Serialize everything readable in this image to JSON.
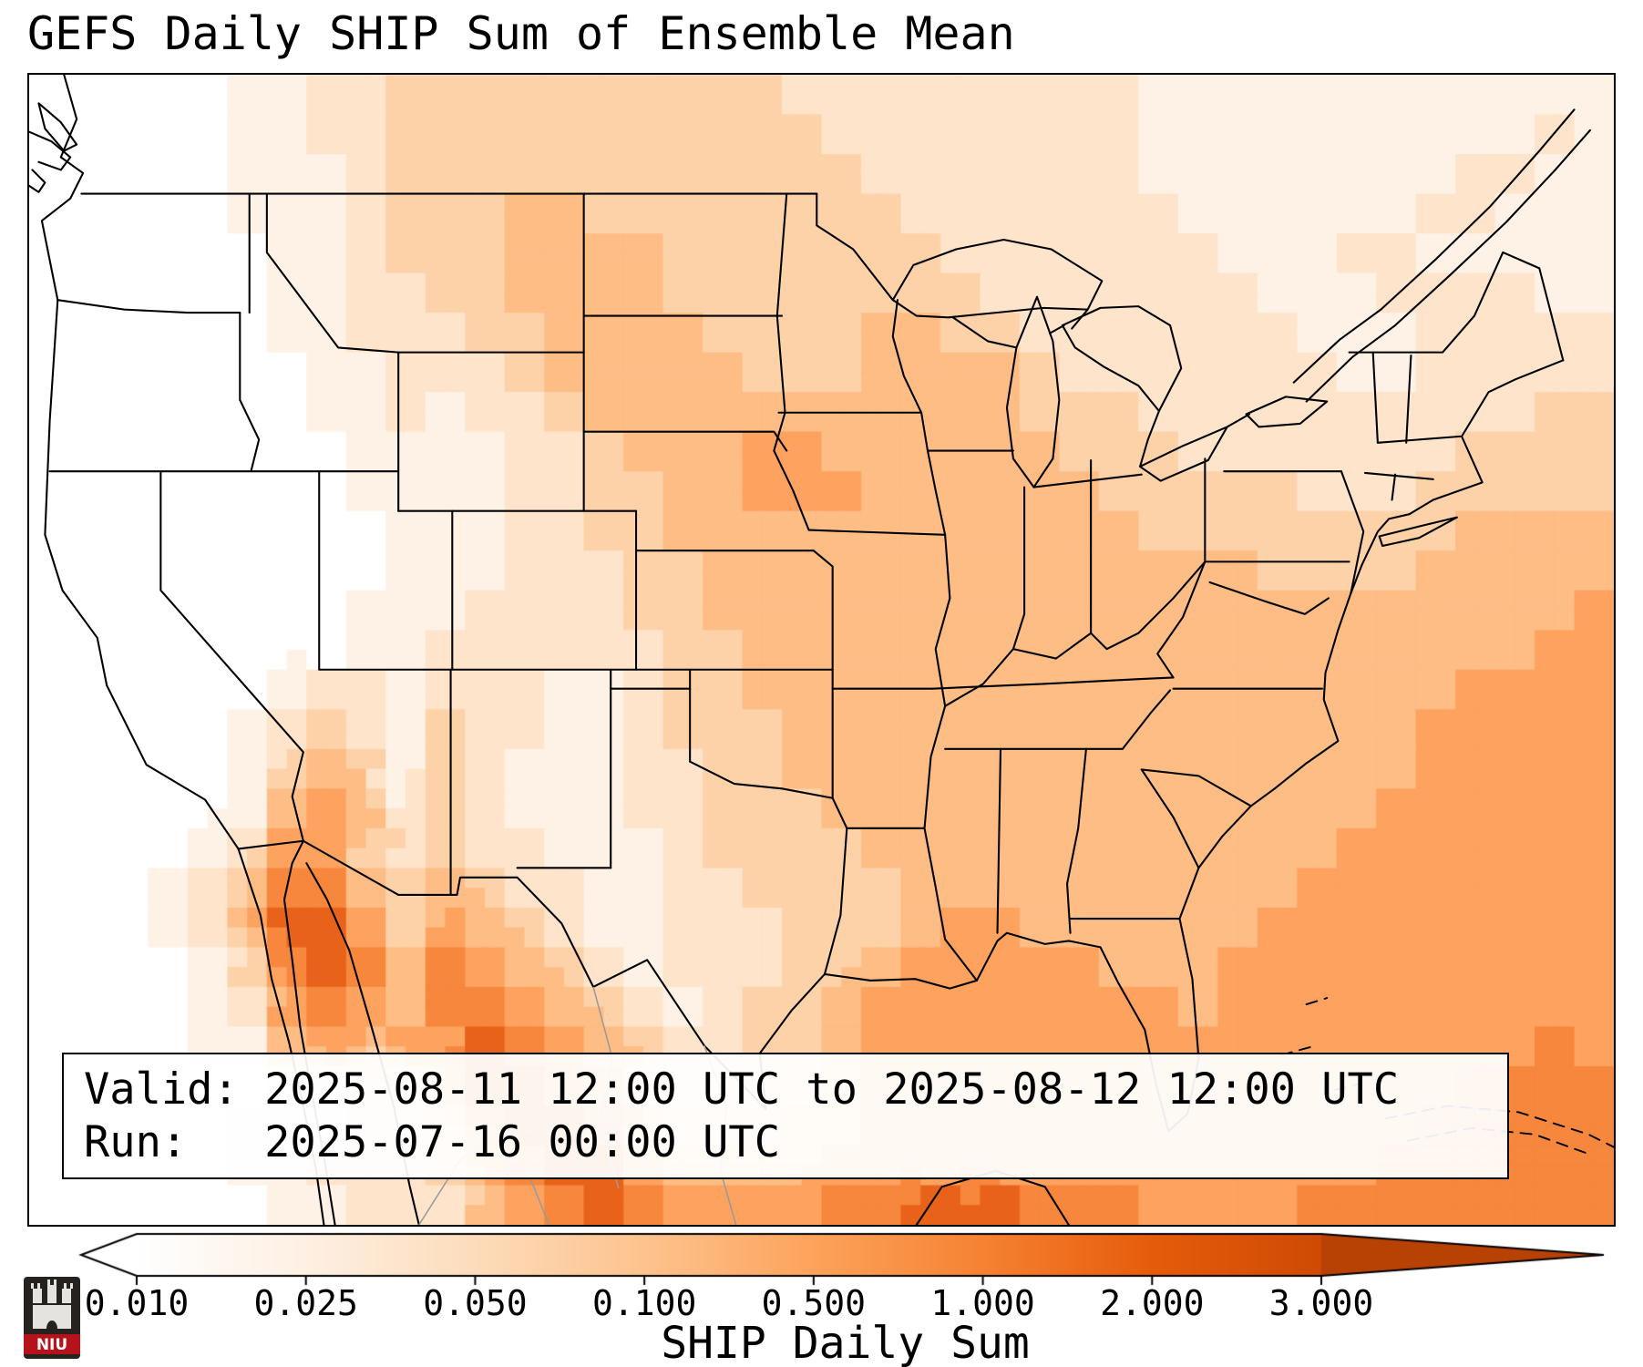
{
  "title": "GEFS Daily SHIP Sum of Ensemble Mean",
  "info_box": {
    "valid": "Valid: 2025-08-11 12:00 UTC to 2025-08-12 12:00 UTC",
    "run": "Run:   2025-07-16 00:00 UTC"
  },
  "colorbar": {
    "label": "SHIP Daily Sum",
    "ticks": [
      "0.010",
      "0.025",
      "0.050",
      "0.100",
      "0.500",
      "1.000",
      "2.000",
      "3.000"
    ],
    "gradient": [
      "#ffffff",
      "#fef0e3",
      "#fddcbb",
      "#fdc38e",
      "#fda35c",
      "#f68232",
      "#e65c0c",
      "#cf4a04"
    ],
    "under_color": "#ffffff",
    "over_color": "#b84203"
  },
  "logo": {
    "text": "NIU",
    "red": "#b5121b",
    "dark": "#26231f"
  },
  "map": {
    "colormap": [
      "#ffffff",
      "#fef2e6",
      "#fde4cb",
      "#fdd2a9",
      "#fdbd85",
      "#fda35f",
      "#f6873d",
      "#e8621a",
      "#cf4a04"
    ],
    "grid": [
      "0000011223333333333222222222111111111111",
      "0000011223333333333322222222111111111121",
      "0000011123333333333332222222111111112211",
      "0000011123334433333333222222211111122111",
      "0000001123334444333333322222221112211111",
      "0000001122334444333333332222222111222211",
      "0000001122233444433334433222222211122222",
      "0000000112223444443334444322222221122222",
      "0000000112122344444444444333222222222233",
      "0000000011112234445544444433322222223333",
      "0000000011112233445554444443333322233333",
      "0000000001112233444444444444333333334444",
      "0000000001112223344444444444444333344444",
      "0000000011122223344444444444444444444445",
      "0000000011222222334444444444444444444455",
      "0000001221222112334444444444444444445555",
      "0000012321322112333444444444444444455555",
      "0000013431321112233444444444444444455555",
      "0000014541321112233344444444444444555555",
      "0000125532322111233334444444444445555555",
      "0001236643432211223333444444444455555555",
      "0001247753543211222333455444444555555555",
      "0000136764654321222334555554445555555555",
      "0000125654665432123345555555545555555555",
      "0000114545576543223345555555555555555565",
      "0000001123477653233345555555555555556666",
      "0000011122367764333445555555555555566666",
      "0000011222356775444455555555555555666666",
      "0000001122245676555566777666555566666666"
    ]
  }
}
